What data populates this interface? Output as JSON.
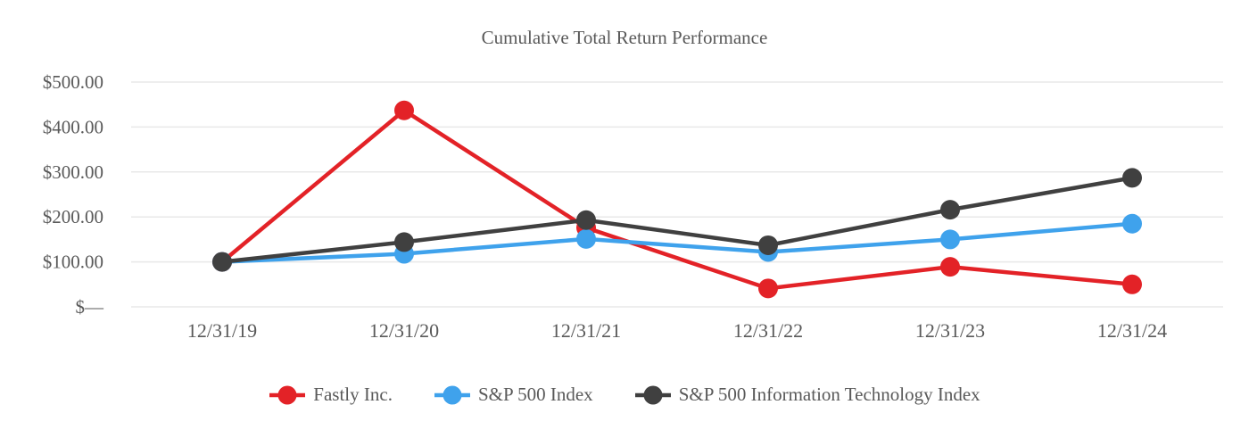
{
  "page": {
    "background_color": "#ffffff",
    "text_color": "#595959"
  },
  "chart_data": {
    "type": "line",
    "title": "Cumulative Total Return Performance",
    "categories": [
      "12/31/19",
      "12/31/20",
      "12/31/21",
      "12/31/22",
      "12/31/23",
      "12/31/24"
    ],
    "series": [
      {
        "name": "Fastly Inc.",
        "color": "#E32227",
        "values": [
          100,
          437,
          176,
          41,
          89,
          50
        ]
      },
      {
        "name": "S&P 500 Index",
        "color": "#3FA2EC",
        "values": [
          100,
          118,
          151,
          122,
          150,
          185
        ]
      },
      {
        "name": "S&P 500 Information Technology Index",
        "color": "#404040",
        "values": [
          100,
          144,
          193,
          137,
          216,
          287
        ]
      }
    ],
    "xlabel": "",
    "ylabel": "",
    "ylim": [
      0,
      500
    ],
    "y_ticks": [
      {
        "value": 0,
        "label": "$—"
      },
      {
        "value": 100,
        "label": "$100.00"
      },
      {
        "value": 200,
        "label": "$200.00"
      },
      {
        "value": 300,
        "label": "$300.00"
      },
      {
        "value": 400,
        "label": "$400.00"
      },
      {
        "value": 500,
        "label": "$500.00"
      }
    ],
    "grid": "horizontal-only",
    "legend_position": "bottom",
    "styles": {
      "grid_color": "#E8E8E8",
      "axis_text_color": "#595959",
      "legend_text_color": "#4d4d4d",
      "line_width": 4.5,
      "marker_radius": 11
    }
  }
}
